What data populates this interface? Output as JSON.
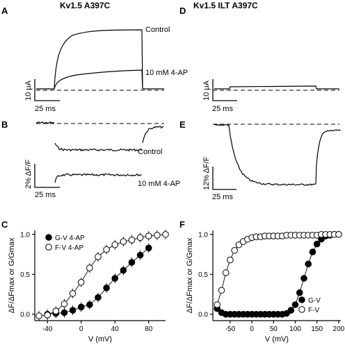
{
  "titles": {
    "left": "Kv1.5 A397C",
    "right": "Kv1.5 ILT A397C"
  },
  "panels": {
    "A": {
      "letter": "A",
      "labels": {
        "control": "Control",
        "drug": "10 mM 4-AP"
      },
      "scale_y": "10 μA",
      "scale_x": "25 ms"
    },
    "B": {
      "letter": "B",
      "labels": {
        "control": "Control",
        "drug": "10 mM 4-AP"
      },
      "scale_y": "2% ΔF/F",
      "scale_x": "25 ms"
    },
    "D": {
      "letter": "D",
      "scale_y": "10 μA",
      "scale_x": "25 ms"
    },
    "E": {
      "letter": "E",
      "scale_y": "12% ΔF/F",
      "scale_x": "25 ms"
    },
    "C": {
      "letter": "C"
    },
    "F": {
      "letter": "F"
    }
  },
  "chart_data": [
    {
      "panel": "C",
      "type": "scatter",
      "xlabel": "V (mV)",
      "ylabel": "ΔF/ΔFmax or G/Gmax",
      "xlim": [
        -55,
        100
      ],
      "ylim": [
        -0.08,
        1.05
      ],
      "xticks": [
        -40,
        0,
        40,
        80
      ],
      "yticks": [
        0.0,
        0.5,
        1.0
      ],
      "legend": "top-left",
      "series": [
        {
          "name": "G-V 4-AP",
          "marker": "filled-circle",
          "x": [
            -40,
            -30,
            -20,
            -10,
            0,
            10,
            20,
            30,
            40,
            50,
            60,
            70,
            80
          ],
          "y": [
            0.0,
            0.01,
            0.02,
            0.05,
            0.09,
            0.12,
            0.21,
            0.33,
            0.45,
            0.55,
            0.65,
            0.74,
            0.83
          ]
        },
        {
          "name": "F-V 4-AP",
          "marker": "open-circle",
          "x": [
            -50,
            -40,
            -30,
            -20,
            -10,
            0,
            10,
            20,
            30,
            40,
            50,
            60,
            70,
            80,
            90,
            100
          ],
          "y": [
            -0.02,
            -0.01,
            0.04,
            0.13,
            0.26,
            0.4,
            0.58,
            0.72,
            0.81,
            0.87,
            0.91,
            0.93,
            0.96,
            0.98,
            0.99,
            1.0
          ]
        }
      ]
    },
    {
      "panel": "F",
      "type": "scatter",
      "xlabel": "V (mV)",
      "ylabel": "ΔF/ΔFmax or G/Gmax",
      "xlim": [
        -90,
        205
      ],
      "ylim": [
        -0.08,
        1.05
      ],
      "xticks": [
        -50,
        0,
        50,
        100,
        150,
        200
      ],
      "yticks": [
        0.0,
        0.5,
        1.0
      ],
      "legend": "bottom-right",
      "series": [
        {
          "name": "G-V",
          "marker": "filled-circle",
          "x": [
            -80,
            -70,
            -60,
            -50,
            -40,
            -30,
            -20,
            -10,
            0,
            10,
            20,
            30,
            40,
            50,
            60,
            70,
            80,
            90,
            100,
            110,
            120,
            130,
            140,
            150,
            160,
            170,
            180,
            190,
            200
          ],
          "y": [
            0.07,
            0.02,
            0.0,
            0.0,
            0.0,
            0.0,
            0.0,
            0.0,
            0.0,
            0.0,
            0.0,
            0.0,
            0.0,
            0.0,
            0.0,
            0.0,
            0.01,
            0.05,
            0.12,
            0.27,
            0.45,
            0.63,
            0.78,
            0.88,
            0.94,
            0.98,
            0.99,
            1.0,
            1.0
          ]
        },
        {
          "name": "F-V",
          "marker": "open-circle",
          "x": [
            -80,
            -70,
            -60,
            -50,
            -40,
            -30,
            -20,
            -10,
            0,
            10,
            20,
            30,
            40,
            50,
            60,
            70,
            80,
            90,
            100,
            110,
            120,
            130,
            140,
            150,
            160,
            170,
            180,
            190,
            200
          ],
          "y": [
            0.12,
            0.3,
            0.52,
            0.68,
            0.8,
            0.87,
            0.91,
            0.94,
            0.96,
            0.97,
            0.97,
            0.98,
            0.98,
            0.98,
            0.98,
            0.98,
            0.99,
            0.99,
            0.99,
            0.99,
            0.99,
            0.99,
            0.99,
            0.99,
            1.0,
            1.0,
            1.0,
            1.0,
            1.0
          ]
        }
      ]
    }
  ]
}
